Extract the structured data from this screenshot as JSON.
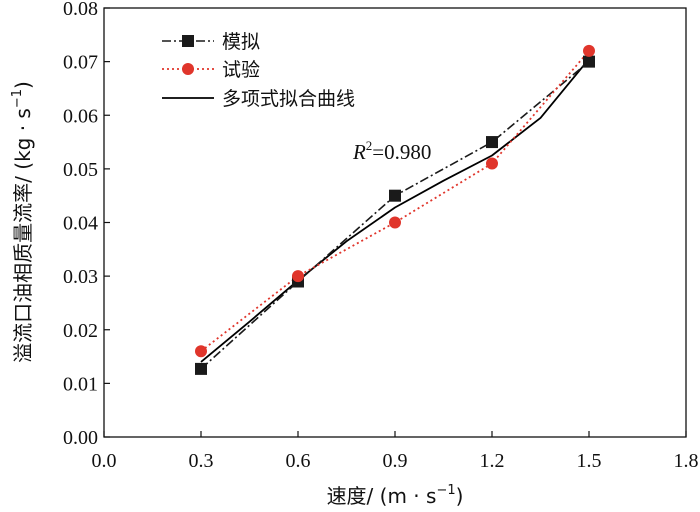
{
  "chart_data": {
    "type": "line",
    "title": "",
    "xlabel": "速度/ (m · s",
    "xlabel_sup": "−1",
    "xlabel_close": ")",
    "ylabel": "溢流口油相质量流率/ (kg · s",
    "ylabel_sup": "−1",
    "ylabel_close": ")",
    "xlim": [
      0,
      1.8
    ],
    "ylim": [
      0,
      0.08
    ],
    "x_ticks": [
      0.0,
      0.3,
      0.6,
      0.9,
      1.2,
      1.5,
      1.8
    ],
    "x_tick_labels": [
      "0.0",
      "0.3",
      "0.6",
      "0.9",
      "1.2",
      "1.5",
      "1.8"
    ],
    "y_ticks": [
      0.0,
      0.01,
      0.02,
      0.03,
      0.04,
      0.05,
      0.06,
      0.07,
      0.08
    ],
    "y_tick_labels": [
      "0.00",
      "0.01",
      "0.02",
      "0.03",
      "0.04",
      "0.05",
      "0.06",
      "0.07",
      "0.08"
    ],
    "grid": false,
    "legend_position": "top-left",
    "series": [
      {
        "name": "模拟",
        "style": "dash-dot",
        "marker": "square",
        "color": "#1a1a1a",
        "x": [
          0.3,
          0.6,
          0.9,
          1.2,
          1.5
        ],
        "values": [
          0.0127,
          0.029,
          0.045,
          0.055,
          0.07
        ]
      },
      {
        "name": "试验",
        "style": "dotted",
        "marker": "circle",
        "color": "#e0352b",
        "x": [
          0.3,
          0.6,
          0.9,
          1.2,
          1.5
        ],
        "values": [
          0.016,
          0.03,
          0.04,
          0.051,
          0.072
        ]
      },
      {
        "name": "多项式拟合曲线",
        "style": "solid",
        "marker": "none",
        "color": "#000000",
        "x": [
          0.3,
          0.45,
          0.6,
          0.75,
          0.9,
          1.05,
          1.2,
          1.35,
          1.5
        ],
        "values": [
          0.014,
          0.0215,
          0.0292,
          0.0365,
          0.0428,
          0.0478,
          0.0525,
          0.0595,
          0.0705
        ]
      }
    ],
    "annotations": [
      {
        "text_main": "R",
        "text_sup": "2",
        "text_rest": "=0.980",
        "x": 0.77,
        "y": 0.0518
      }
    ]
  }
}
